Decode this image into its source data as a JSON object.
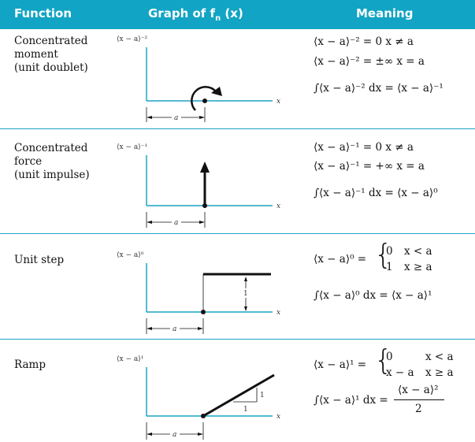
{
  "header": {
    "col_function": "Function",
    "col_graph": "Graph of f",
    "col_graph_sub": "n",
    "col_graph_arg": " (x)",
    "col_meaning": "Meaning"
  },
  "rows": [
    {
      "function_lines": [
        "Concentrated",
        "moment",
        "(unit doublet)"
      ],
      "graph_label": "⟨x − a⟩⁻²",
      "x_label": "x",
      "a_label": "a",
      "meaning": [
        "⟨x − a⟩⁻² = 0   x ≠ a",
        "⟨x − a⟩⁻² = ±∞   x = a",
        "∫⟨x − a⟩⁻² dx = ⟨x − a⟩⁻¹"
      ]
    },
    {
      "function_lines": [
        "Concentrated",
        "force",
        "(unit impulse)"
      ],
      "graph_label": "⟨x − a⟩⁻¹",
      "x_label": "x",
      "a_label": "a",
      "meaning": [
        "⟨x − a⟩⁻¹ = 0   x ≠ a",
        "⟨x − a⟩⁻¹ = +∞   x = a",
        "∫⟨x − a⟩⁻¹ dx = ⟨x − a⟩⁰"
      ]
    },
    {
      "function_lines": [
        "Unit step"
      ],
      "graph_label": "⟨x − a⟩⁰",
      "x_label": "x",
      "a_label": "a",
      "step_label": "1",
      "meaning_lhs": "⟨x − a⟩⁰ =",
      "cases": [
        {
          "value": "0",
          "cond": "x < a"
        },
        {
          "value": "1",
          "cond": "x ≥ a"
        }
      ],
      "integral": "∫⟨x − a⟩⁰ dx = ⟨x − a⟩¹"
    },
    {
      "function_lines": [
        "Ramp"
      ],
      "graph_label": "⟨x − a⟩¹",
      "x_label": "x",
      "a_label": "a",
      "slope_run": "1",
      "slope_rise": "1",
      "meaning_lhs": "⟨x − a⟩¹ =",
      "cases": [
        {
          "value": "0",
          "cond": "x < a"
        },
        {
          "value": "x − a",
          "cond": "x ≥ a"
        }
      ],
      "integral_lhs": "∫⟨x − a⟩¹ dx =",
      "integral_num": "⟨x − a⟩²",
      "integral_den": "2"
    }
  ],
  "colors": {
    "header_bg": "#12a4c4",
    "axis": "#1aa4c4",
    "ink": "#111111"
  }
}
